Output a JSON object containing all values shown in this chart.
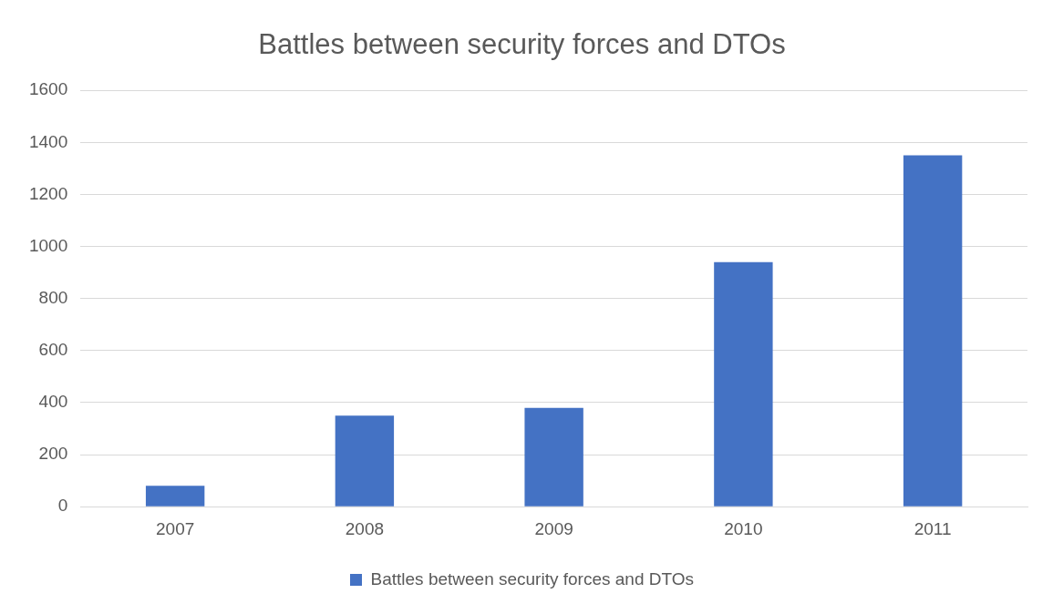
{
  "chart_data": {
    "type": "bar",
    "title": "Battles between security forces and DTOs",
    "categories": [
      "2007",
      "2008",
      "2009",
      "2010",
      "2011"
    ],
    "series": [
      {
        "name": "Battles between security forces and DTOs",
        "color": "#4472c4",
        "values": [
          80,
          350,
          380,
          940,
          1350
        ]
      }
    ],
    "ylim": [
      0,
      1600
    ],
    "yticks": [
      0,
      200,
      400,
      600,
      800,
      1000,
      1200,
      1400,
      1600
    ],
    "grid": "y",
    "legend": "bottom"
  }
}
